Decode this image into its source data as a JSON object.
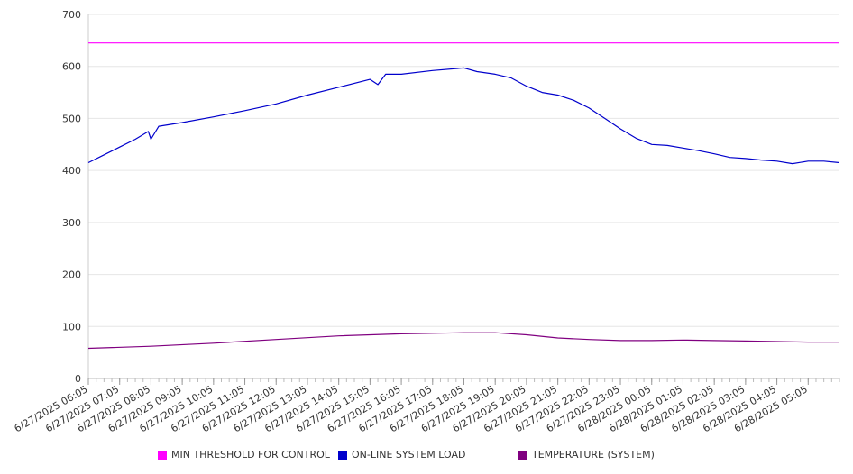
{
  "chart_data": {
    "type": "line",
    "title": "",
    "xlabel": "",
    "ylabel": "",
    "ylim": [
      0,
      700
    ],
    "yticks": [
      0,
      100,
      200,
      300,
      400,
      500,
      600,
      700
    ],
    "grid": true,
    "legend_position": "bottom",
    "x_tick_labels": [
      "6/27/2025 06:05",
      "6/27/2025 07:05",
      "6/27/2025 08:05",
      "6/27/2025 09:05",
      "6/27/2025 10:05",
      "6/27/2025 11:05",
      "6/27/2025 12:05",
      "6/27/2025 13:05",
      "6/27/2025 14:05",
      "6/27/2025 15:05",
      "6/27/2025 16:05",
      "6/27/2025 17:05",
      "6/27/2025 18:05",
      "6/27/2025 19:05",
      "6/27/2025 20:05",
      "6/27/2025 21:05",
      "6/27/2025 22:05",
      "6/27/2025 23:05",
      "6/28/2025 00:05",
      "6/28/2025 01:05",
      "6/28/2025 02:05",
      "6/28/2025 03:05",
      "6/28/2025 04:05",
      "6/28/2025 05:05"
    ],
    "x_start": "6/27/2025 06:05",
    "x_end": "6/28/2025 06:05",
    "series": [
      {
        "name": "MIN THRESHOLD FOR CONTROL",
        "color": "#ff00ff",
        "x": [
          "6/27/2025 06:05",
          "6/28/2025 06:05"
        ],
        "values": [
          645,
          645
        ]
      },
      {
        "name": "ON-LINE SYSTEM LOAD",
        "color": "#0000cc",
        "x": [
          "6/27/2025 06:05",
          "6/27/2025 06:35",
          "6/27/2025 07:05",
          "6/27/2025 07:35",
          "6/27/2025 08:00",
          "6/27/2025 08:05",
          "6/27/2025 08:20",
          "6/27/2025 09:05",
          "6/27/2025 10:05",
          "6/27/2025 11:05",
          "6/27/2025 12:05",
          "6/27/2025 13:05",
          "6/27/2025 14:05",
          "6/27/2025 15:05",
          "6/27/2025 15:20",
          "6/27/2025 15:35",
          "6/27/2025 16:05",
          "6/27/2025 17:05",
          "6/27/2025 18:05",
          "6/27/2025 18:30",
          "6/27/2025 19:05",
          "6/27/2025 19:35",
          "6/27/2025 20:05",
          "6/27/2025 20:35",
          "6/27/2025 21:05",
          "6/27/2025 21:35",
          "6/27/2025 22:05",
          "6/27/2025 22:35",
          "6/27/2025 23:05",
          "6/27/2025 23:35",
          "6/28/2025 00:05",
          "6/28/2025 00:35",
          "6/28/2025 01:05",
          "6/28/2025 01:35",
          "6/28/2025 02:05",
          "6/28/2025 02:35",
          "6/28/2025 03:05",
          "6/28/2025 03:35",
          "6/28/2025 04:05",
          "6/28/2025 04:35",
          "6/28/2025 05:05",
          "6/28/2025 05:35",
          "6/28/2025 06:05"
        ],
        "values": [
          415,
          430,
          445,
          460,
          475,
          460,
          485,
          492,
          503,
          515,
          528,
          545,
          560,
          575,
          565,
          585,
          585,
          592,
          597,
          590,
          585,
          578,
          562,
          550,
          545,
          535,
          520,
          500,
          480,
          462,
          450,
          448,
          443,
          438,
          432,
          425,
          423,
          420,
          418,
          413,
          418,
          418,
          415
        ]
      },
      {
        "name": "TEMPERATURE (SYSTEM)",
        "color": "#800080",
        "x": [
          "6/27/2025 06:05",
          "6/27/2025 08:05",
          "6/27/2025 10:05",
          "6/27/2025 12:05",
          "6/27/2025 14:05",
          "6/27/2025 16:05",
          "6/27/2025 17:05",
          "6/27/2025 18:05",
          "6/27/2025 19:05",
          "6/27/2025 20:05",
          "6/27/2025 21:05",
          "6/27/2025 22:05",
          "6/27/2025 23:05",
          "6/28/2025 00:05",
          "6/28/2025 01:05",
          "6/28/2025 02:05",
          "6/28/2025 03:05",
          "6/28/2025 04:05",
          "6/28/2025 05:05",
          "6/28/2025 06:05"
        ],
        "values": [
          58,
          62,
          68,
          75,
          82,
          86,
          87,
          88,
          88,
          84,
          78,
          75,
          73,
          73,
          74,
          73,
          72,
          71,
          70,
          70
        ]
      }
    ]
  }
}
